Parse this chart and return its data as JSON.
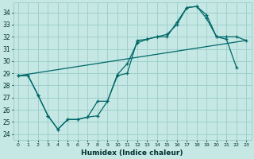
{
  "xlabel": "Humidex (Indice chaleur)",
  "background_color": "#c5e8e5",
  "grid_color": "#9fcfcc",
  "line_color": "#006868",
  "xlim": [
    -0.5,
    23.5
  ],
  "ylim": [
    23.5,
    34.8
  ],
  "yticks": [
    24,
    25,
    26,
    27,
    28,
    29,
    30,
    31,
    32,
    33,
    34
  ],
  "xticks": [
    0,
    1,
    2,
    3,
    4,
    5,
    6,
    7,
    8,
    9,
    10,
    11,
    12,
    13,
    14,
    15,
    16,
    17,
    18,
    19,
    20,
    21,
    22,
    23
  ],
  "line1_x": [
    0,
    1,
    2,
    3,
    4,
    5,
    6,
    7,
    8,
    9,
    10,
    11,
    12,
    13,
    14,
    15,
    16,
    17,
    18,
    19,
    20,
    21,
    22
  ],
  "line1_y": [
    28.8,
    28.8,
    27.2,
    25.5,
    24.4,
    25.2,
    25.2,
    25.4,
    25.5,
    26.7,
    28.8,
    29.0,
    31.7,
    31.8,
    32.0,
    32.0,
    33.2,
    34.4,
    34.5,
    33.8,
    32.0,
    31.8,
    29.5
  ],
  "line2_x": [
    0,
    1,
    2,
    3,
    4,
    5,
    6,
    7,
    8,
    9,
    10,
    11,
    12,
    13,
    14,
    15,
    16,
    17,
    18,
    19,
    20,
    21,
    22,
    23
  ],
  "line2_y": [
    28.8,
    28.8,
    27.2,
    25.5,
    24.4,
    25.2,
    25.2,
    25.4,
    26.7,
    26.7,
    28.9,
    29.8,
    31.5,
    31.8,
    32.0,
    32.2,
    33.0,
    34.4,
    34.5,
    33.5,
    32.0,
    32.0,
    32.0,
    31.7
  ],
  "line3_x": [
    0,
    23
  ],
  "line3_y": [
    28.8,
    31.7
  ]
}
